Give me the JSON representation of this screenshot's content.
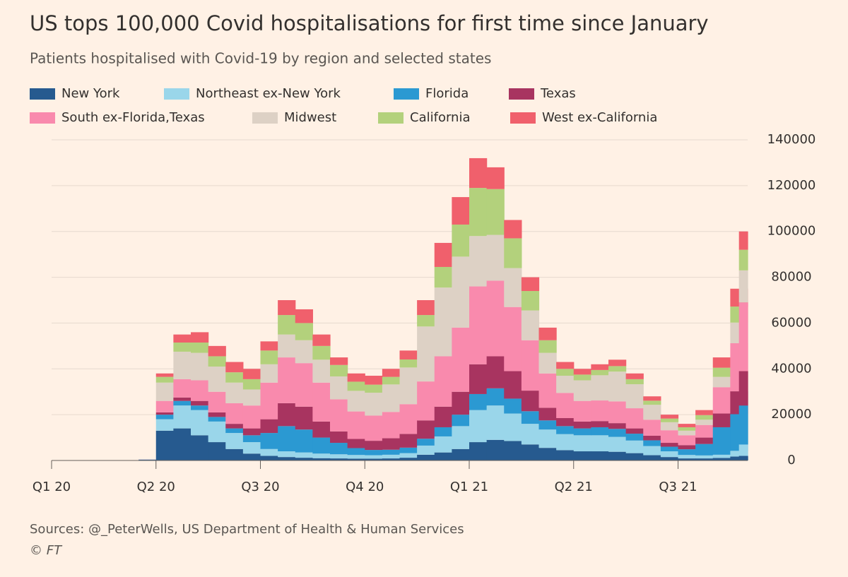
{
  "chart_data": {
    "type": "stacked-bar",
    "title": "US tops 100,000 Covid hospitalisations for first time since January",
    "subtitle": "Patients hospitalised with Covid-19 by region and selected states",
    "source": "Sources: @_PeterWells, US Department of Health & Human Services",
    "credit": "© FT",
    "categories": [
      "Q1 20",
      null,
      null,
      null,
      null,
      null,
      "Q2 20",
      null,
      null,
      null,
      null,
      null,
      "Q3 20",
      null,
      null,
      null,
      null,
      null,
      "Q4 20",
      null,
      null,
      null,
      null,
      null,
      "Q1 21",
      null,
      null,
      null,
      null,
      null,
      "Q2 21",
      null,
      null,
      null,
      null,
      null,
      "Q3 21",
      null,
      null,
      null,
      null
    ],
    "series": [
      {
        "name": "New York",
        "color": "#265a8f",
        "values": [
          0,
          0,
          0,
          0,
          0,
          300,
          13000,
          14000,
          11000,
          8000,
          5000,
          3000,
          2000,
          1500,
          1200,
          1000,
          900,
          800,
          800,
          900,
          1200,
          2500,
          3500,
          5000,
          8000,
          9000,
          8500,
          7000,
          5500,
          4500,
          4000,
          4000,
          3800,
          3200,
          2300,
          1500,
          900,
          900,
          1100,
          1700,
          2000
        ]
      },
      {
        "name": "Northeast ex-New York",
        "color": "#9ad6ea",
        "values": [
          0,
          0,
          0,
          0,
          0,
          100,
          5000,
          10000,
          11000,
          9000,
          7000,
          5000,
          3000,
          2500,
          2300,
          2000,
          1800,
          1600,
          1500,
          1600,
          2000,
          4000,
          7000,
          10000,
          14000,
          15000,
          12000,
          9000,
          8000,
          7000,
          7000,
          7000,
          6500,
          5500,
          4000,
          2500,
          1500,
          1300,
          1400,
          2500,
          5000
        ]
      },
      {
        "name": "Florida",
        "color": "#2b99d2",
        "values": [
          0,
          0,
          0,
          0,
          0,
          30,
          2000,
          2000,
          2000,
          2000,
          2000,
          3000,
          7000,
          11000,
          10000,
          7000,
          5000,
          3000,
          2300,
          2200,
          2400,
          3000,
          4000,
          5000,
          7000,
          7500,
          6500,
          5500,
          4000,
          3500,
          3000,
          3500,
          3500,
          3000,
          2500,
          2000,
          2500,
          5000,
          12000,
          16000,
          17000
        ]
      },
      {
        "name": "Texas",
        "color": "#a83460",
        "values": [
          0,
          0,
          0,
          0,
          0,
          20,
          1000,
          1500,
          2000,
          2000,
          2000,
          3000,
          6000,
          10000,
          10000,
          7000,
          5000,
          4000,
          4000,
          5000,
          6000,
          8000,
          9000,
          10000,
          13000,
          14000,
          12000,
          9000,
          5500,
          3500,
          3000,
          2700,
          2500,
          2300,
          2000,
          1700,
          1800,
          2800,
          6000,
          10000,
          15000
        ]
      },
      {
        "name": "South ex-Florida,Texas",
        "color": "#f98aad",
        "values": [
          0,
          0,
          0,
          0,
          0,
          30,
          5000,
          8000,
          9000,
          9000,
          9000,
          10000,
          16000,
          20000,
          19000,
          17000,
          14000,
          12000,
          11000,
          11500,
          13000,
          17000,
          22000,
          28000,
          34000,
          33000,
          28000,
          22000,
          15000,
          11000,
          9000,
          9000,
          9500,
          8800,
          7000,
          5500,
          4300,
          5500,
          11500,
          21000,
          30000
        ]
      },
      {
        "name": "Midwest",
        "color": "#ddd1c5",
        "values": [
          0,
          0,
          0,
          0,
          0,
          20,
          8000,
          12000,
          12000,
          11000,
          9000,
          7000,
          8000,
          10000,
          10000,
          10000,
          10000,
          9000,
          10000,
          12000,
          16000,
          24000,
          30000,
          31000,
          22000,
          20000,
          17000,
          13000,
          9000,
          7500,
          9000,
          11000,
          13000,
          10500,
          6500,
          3500,
          2000,
          2300,
          4500,
          9000,
          14000
        ]
      },
      {
        "name": "California",
        "color": "#b3d17c",
        "values": [
          0,
          0,
          0,
          0,
          0,
          0,
          2500,
          4000,
          4500,
          4500,
          4500,
          4500,
          6000,
          8500,
          7500,
          6000,
          5000,
          4000,
          3500,
          3300,
          3500,
          5000,
          9000,
          14000,
          21000,
          20000,
          13000,
          8500,
          5500,
          3000,
          2500,
          2300,
          2400,
          2200,
          1800,
          1600,
          1500,
          2000,
          4000,
          7000,
          9000
        ]
      },
      {
        "name": "West ex-California",
        "color": "#f0606c",
        "values": [
          0,
          0,
          0,
          0,
          0,
          0,
          1500,
          3500,
          4500,
          4500,
          4500,
          4500,
          4000,
          6500,
          6000,
          5000,
          3300,
          3600,
          3900,
          3500,
          3900,
          6500,
          10500,
          12000,
          13000,
          9500,
          8000,
          6000,
          5500,
          3000,
          2500,
          2500,
          2800,
          2500,
          1900,
          1700,
          1500,
          2200,
          4500,
          7800,
          8000
        ]
      }
    ],
    "ylim": [
      0,
      140000
    ],
    "yticks": [
      0,
      20000,
      40000,
      60000,
      80000,
      100000,
      120000,
      140000
    ],
    "grid": true
  }
}
